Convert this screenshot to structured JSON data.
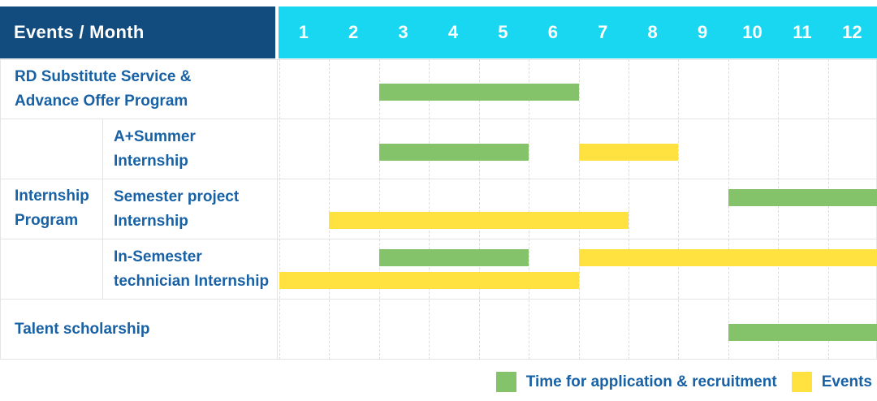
{
  "chart_data": {
    "type": "gantt",
    "title": "Events / Month",
    "x_ticks": [
      "1",
      "2",
      "3",
      "4",
      "5",
      "6",
      "7",
      "8",
      "9",
      "10",
      "11",
      "12"
    ],
    "x_range": [
      1,
      12
    ],
    "colors": {
      "header_bg": "#124b7e",
      "months_bg": "#19d7f0",
      "header_text": "#ffffff",
      "label_text": "#1861a5",
      "application": "#85c36b",
      "events": "#ffe23f",
      "grid": "#e4e4e4"
    },
    "groups": [
      {
        "label_lines": [
          "Internship",
          "Program"
        ],
        "first_row": 1,
        "last_row": 3
      }
    ],
    "rows": [
      {
        "label": "RD Substitute Service & Advance Offer Program",
        "label_lines": [
          "RD Substitute Service &",
          "Advance Offer Program"
        ],
        "in_group": false,
        "lanes": [
          [
            {
              "kind": "application",
              "start_month": 3,
              "end_month": 6
            }
          ]
        ]
      },
      {
        "label": "A+Summer Internship",
        "label_lines": [
          "A+Summer",
          "Internship"
        ],
        "in_group": true,
        "lanes": [
          [
            {
              "kind": "application",
              "start_month": 3,
              "end_month": 5
            },
            {
              "kind": "events",
              "start_month": 7,
              "end_month": 8
            }
          ]
        ]
      },
      {
        "label": "Semester project Internship",
        "label_lines": [
          "Semester project",
          "Internship"
        ],
        "in_group": true,
        "lanes": [
          [
            {
              "kind": "application",
              "start_month": 10,
              "end_month": 12
            }
          ],
          [
            {
              "kind": "events",
              "start_month": 2,
              "end_month": 7
            }
          ]
        ]
      },
      {
        "label": "In-Semester technician Internship",
        "label_lines": [
          "In-Semester",
          "technician Internship"
        ],
        "in_group": true,
        "lanes": [
          [
            {
              "kind": "application",
              "start_month": 3,
              "end_month": 5
            },
            {
              "kind": "events",
              "start_month": 7,
              "end_month": 12
            }
          ],
          [
            {
              "kind": "events",
              "start_month": 1,
              "end_month": 6
            }
          ]
        ]
      },
      {
        "label": "Talent scholarship",
        "label_lines": [
          "Talent scholarship"
        ],
        "in_group": false,
        "lanes": [
          [
            {
              "kind": "application",
              "start_month": 10,
              "end_month": 12
            }
          ]
        ]
      }
    ],
    "legend": [
      {
        "kind": "application",
        "label": "Time for application & recruitment"
      },
      {
        "kind": "events",
        "label": "Events"
      }
    ]
  }
}
